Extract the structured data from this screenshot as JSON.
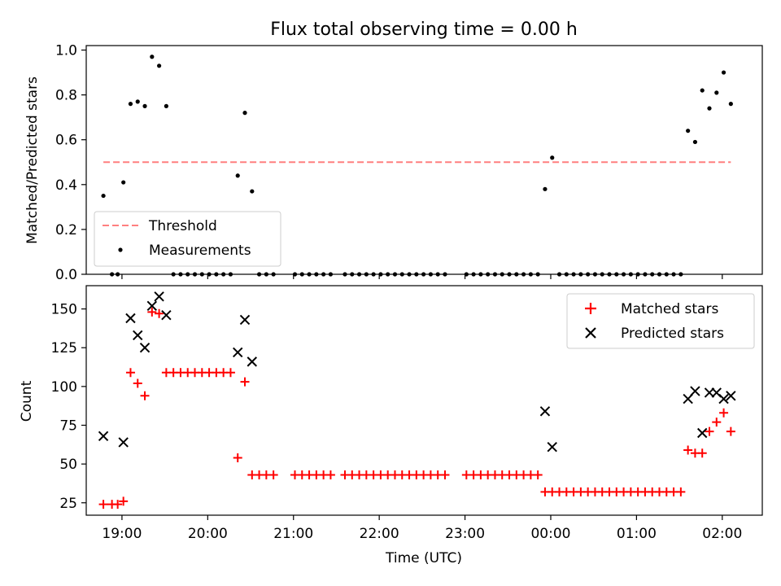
{
  "chart_data": [
    {
      "type": "scatter",
      "title": "Flux total observing time = 0.00 h",
      "ylabel": "Matched/Predicted stars",
      "xlabel": "",
      "ylim": [
        0,
        1.02
      ],
      "xlim": [
        "18:35",
        "02:28"
      ],
      "x_ticks": [
        "19:00",
        "20:00",
        "21:00",
        "22:00",
        "23:00",
        "00:00",
        "01:00",
        "02:00"
      ],
      "y_ticks": [
        "0.0",
        "0.2",
        "0.4",
        "0.6",
        "0.8",
        "1.0"
      ],
      "legend_position": "lower-left",
      "threshold": {
        "name": "Threshold",
        "value": 0.5,
        "x_start": "18:47",
        "x_end": "02:06",
        "color": "#ff7f7f"
      },
      "series": [
        {
          "name": "Measurements",
          "color": "#000000",
          "points": [
            [
              "18:47",
              0.35
            ],
            [
              "18:53",
              0.0
            ],
            [
              "18:57",
              0.0
            ],
            [
              "19:01",
              0.41
            ],
            [
              "19:06",
              0.76
            ],
            [
              "19:11",
              0.77
            ],
            [
              "19:16",
              0.75
            ],
            [
              "19:21",
              0.97
            ],
            [
              "19:26",
              0.93
            ],
            [
              "19:31",
              0.75
            ],
            [
              "19:36",
              0.0
            ],
            [
              "19:41",
              0.0
            ],
            [
              "19:46",
              0.0
            ],
            [
              "19:51",
              0.0
            ],
            [
              "19:56",
              0.0
            ],
            [
              "20:01",
              0.0
            ],
            [
              "20:06",
              0.0
            ],
            [
              "20:11",
              0.0
            ],
            [
              "20:16",
              0.0
            ],
            [
              "20:21",
              0.44
            ],
            [
              "20:26",
              0.72
            ],
            [
              "20:31",
              0.37
            ],
            [
              "20:36",
              0.0
            ],
            [
              "20:41",
              0.0
            ],
            [
              "20:46",
              0.0
            ],
            [
              "21:01",
              0.0
            ],
            [
              "21:06",
              0.0
            ],
            [
              "21:11",
              0.0
            ],
            [
              "21:16",
              0.0
            ],
            [
              "21:21",
              0.0
            ],
            [
              "21:26",
              0.0
            ],
            [
              "21:36",
              0.0
            ],
            [
              "21:41",
              0.0
            ],
            [
              "21:46",
              0.0
            ],
            [
              "21:51",
              0.0
            ],
            [
              "21:56",
              0.0
            ],
            [
              "22:01",
              0.0
            ],
            [
              "22:06",
              0.0
            ],
            [
              "22:11",
              0.0
            ],
            [
              "22:16",
              0.0
            ],
            [
              "22:21",
              0.0
            ],
            [
              "22:26",
              0.0
            ],
            [
              "22:31",
              0.0
            ],
            [
              "22:36",
              0.0
            ],
            [
              "22:41",
              0.0
            ],
            [
              "22:46",
              0.0
            ],
            [
              "23:01",
              0.0
            ],
            [
              "23:06",
              0.0
            ],
            [
              "23:11",
              0.0
            ],
            [
              "23:16",
              0.0
            ],
            [
              "23:21",
              0.0
            ],
            [
              "23:26",
              0.0
            ],
            [
              "23:31",
              0.0
            ],
            [
              "23:36",
              0.0
            ],
            [
              "23:41",
              0.0
            ],
            [
              "23:46",
              0.0
            ],
            [
              "23:51",
              0.0
            ],
            [
              "23:56",
              0.38
            ],
            [
              "00:01",
              0.52
            ],
            [
              "00:06",
              0.0
            ],
            [
              "00:11",
              0.0
            ],
            [
              "00:16",
              0.0
            ],
            [
              "00:21",
              0.0
            ],
            [
              "00:26",
              0.0
            ],
            [
              "00:31",
              0.0
            ],
            [
              "00:36",
              0.0
            ],
            [
              "00:41",
              0.0
            ],
            [
              "00:46",
              0.0
            ],
            [
              "00:51",
              0.0
            ],
            [
              "00:56",
              0.0
            ],
            [
              "01:01",
              0.0
            ],
            [
              "01:06",
              0.0
            ],
            [
              "01:11",
              0.0
            ],
            [
              "01:16",
              0.0
            ],
            [
              "01:21",
              0.0
            ],
            [
              "01:26",
              0.0
            ],
            [
              "01:31",
              0.0
            ],
            [
              "01:36",
              0.64
            ],
            [
              "01:41",
              0.59
            ],
            [
              "01:46",
              0.82
            ],
            [
              "01:51",
              0.74
            ],
            [
              "01:56",
              0.81
            ],
            [
              "02:01",
              0.9
            ],
            [
              "02:06",
              0.76
            ]
          ]
        }
      ]
    },
    {
      "type": "scatter",
      "title": "",
      "ylabel": "Count",
      "xlabel": "Time (UTC)",
      "ylim": [
        17,
        165
      ],
      "xlim": [
        "18:35",
        "02:28"
      ],
      "x_ticks": [
        "19:00",
        "20:00",
        "21:00",
        "22:00",
        "23:00",
        "00:00",
        "01:00",
        "02:00"
      ],
      "y_ticks": [
        "25",
        "50",
        "75",
        "100",
        "125",
        "150"
      ],
      "legend_position": "upper-right",
      "series": [
        {
          "name": "Matched stars",
          "marker": "plus",
          "color": "#ff0000",
          "points": [
            [
              "18:47",
              24
            ],
            [
              "18:53",
              24
            ],
            [
              "18:57",
              24
            ],
            [
              "19:01",
              26
            ],
            [
              "19:06",
              109
            ],
            [
              "19:11",
              102
            ],
            [
              "19:16",
              94
            ],
            [
              "19:21",
              148
            ],
            [
              "19:26",
              147
            ],
            [
              "19:31",
              109
            ],
            [
              "19:36",
              109
            ],
            [
              "19:41",
              109
            ],
            [
              "19:46",
              109
            ],
            [
              "19:51",
              109
            ],
            [
              "19:56",
              109
            ],
            [
              "20:01",
              109
            ],
            [
              "20:06",
              109
            ],
            [
              "20:11",
              109
            ],
            [
              "20:16",
              109
            ],
            [
              "20:21",
              54
            ],
            [
              "20:26",
              103
            ],
            [
              "20:31",
              43
            ],
            [
              "20:36",
              43
            ],
            [
              "20:41",
              43
            ],
            [
              "20:46",
              43
            ],
            [
              "21:01",
              43
            ],
            [
              "21:06",
              43
            ],
            [
              "21:11",
              43
            ],
            [
              "21:16",
              43
            ],
            [
              "21:21",
              43
            ],
            [
              "21:26",
              43
            ],
            [
              "21:36",
              43
            ],
            [
              "21:41",
              43
            ],
            [
              "21:46",
              43
            ],
            [
              "21:51",
              43
            ],
            [
              "21:56",
              43
            ],
            [
              "22:01",
              43
            ],
            [
              "22:06",
              43
            ],
            [
              "22:11",
              43
            ],
            [
              "22:16",
              43
            ],
            [
              "22:21",
              43
            ],
            [
              "22:26",
              43
            ],
            [
              "22:31",
              43
            ],
            [
              "22:36",
              43
            ],
            [
              "22:41",
              43
            ],
            [
              "22:46",
              43
            ],
            [
              "23:01",
              43
            ],
            [
              "23:06",
              43
            ],
            [
              "23:11",
              43
            ],
            [
              "23:16",
              43
            ],
            [
              "23:21",
              43
            ],
            [
              "23:26",
              43
            ],
            [
              "23:31",
              43
            ],
            [
              "23:36",
              43
            ],
            [
              "23:41",
              43
            ],
            [
              "23:46",
              43
            ],
            [
              "23:51",
              43
            ],
            [
              "23:56",
              32
            ],
            [
              "00:01",
              32
            ],
            [
              "00:06",
              32
            ],
            [
              "00:11",
              32
            ],
            [
              "00:16",
              32
            ],
            [
              "00:21",
              32
            ],
            [
              "00:26",
              32
            ],
            [
              "00:31",
              32
            ],
            [
              "00:36",
              32
            ],
            [
              "00:41",
              32
            ],
            [
              "00:46",
              32
            ],
            [
              "00:51",
              32
            ],
            [
              "00:56",
              32
            ],
            [
              "01:01",
              32
            ],
            [
              "01:06",
              32
            ],
            [
              "01:11",
              32
            ],
            [
              "01:16",
              32
            ],
            [
              "01:21",
              32
            ],
            [
              "01:26",
              32
            ],
            [
              "01:31",
              32
            ],
            [
              "01:36",
              59
            ],
            [
              "01:41",
              57
            ],
            [
              "01:46",
              57
            ],
            [
              "01:51",
              71
            ],
            [
              "01:56",
              77
            ],
            [
              "02:01",
              83
            ],
            [
              "02:06",
              71
            ]
          ]
        },
        {
          "name": "Predicted stars",
          "marker": "x",
          "color": "#000000",
          "points": [
            [
              "18:47",
              68
            ],
            [
              "19:01",
              64
            ],
            [
              "19:06",
              144
            ],
            [
              "19:11",
              133
            ],
            [
              "19:16",
              125
            ],
            [
              "19:21",
              152
            ],
            [
              "19:26",
              158
            ],
            [
              "19:31",
              146
            ],
            [
              "20:21",
              122
            ],
            [
              "20:26",
              143
            ],
            [
              "20:31",
              116
            ],
            [
              "23:56",
              84
            ],
            [
              "00:01",
              61
            ],
            [
              "01:36",
              92
            ],
            [
              "01:41",
              97
            ],
            [
              "01:46",
              70
            ],
            [
              "01:51",
              96
            ],
            [
              "01:56",
              96
            ],
            [
              "02:01",
              92
            ],
            [
              "02:06",
              94
            ]
          ]
        }
      ]
    }
  ]
}
